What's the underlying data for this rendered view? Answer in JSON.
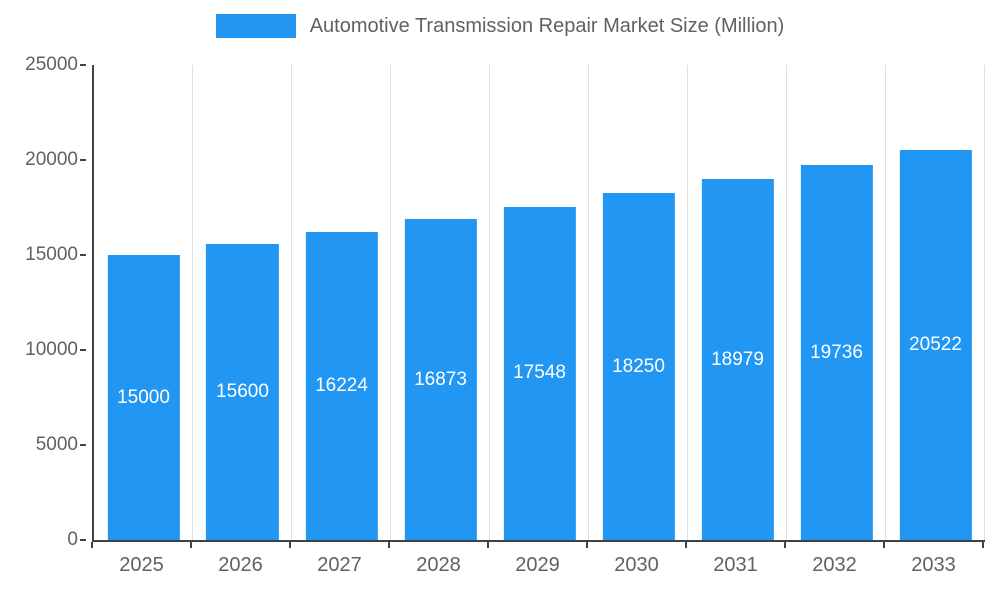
{
  "chart_data": {
    "type": "bar",
    "title": "Automotive Transmission Repair Market Size (Million)",
    "categories": [
      "2025",
      "2026",
      "2027",
      "2028",
      "2029",
      "2030",
      "2031",
      "2032",
      "2033"
    ],
    "values": [
      15000,
      15600,
      16224,
      16873,
      17548,
      18250,
      18979,
      19736,
      20522
    ],
    "xlabel": "",
    "ylabel": "",
    "ylim": [
      0,
      25000
    ],
    "ytick_step": 5000,
    "ytick_labels": [
      "0",
      "5000",
      "10000",
      "15000",
      "20000",
      "25000"
    ],
    "grid": "vertical",
    "legend_position": "top",
    "bar_color": "#2196f3",
    "value_label_color": "#ffffff",
    "axis_color": "#424242",
    "grid_color": "#e0e0e0",
    "text_color": "#616161"
  }
}
